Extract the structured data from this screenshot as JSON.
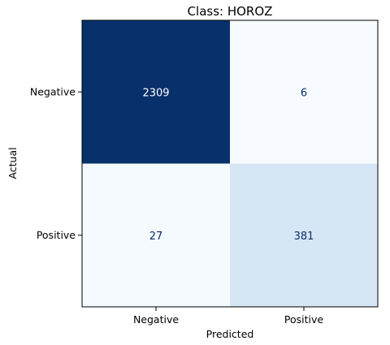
{
  "chart_data": {
    "type": "heatmap",
    "title": "Class: HOROZ",
    "xlabel": "Predicted",
    "ylabel": "Actual",
    "x_categories": [
      "Negative",
      "Positive"
    ],
    "y_categories": [
      "Negative",
      "Positive"
    ],
    "values": [
      [
        2309,
        6
      ],
      [
        27,
        381
      ]
    ],
    "colormap": {
      "low": "#f7fbff",
      "high": "#08306b",
      "light_text": "#ffffff",
      "dark_text": "#08306b"
    },
    "grid": false
  }
}
